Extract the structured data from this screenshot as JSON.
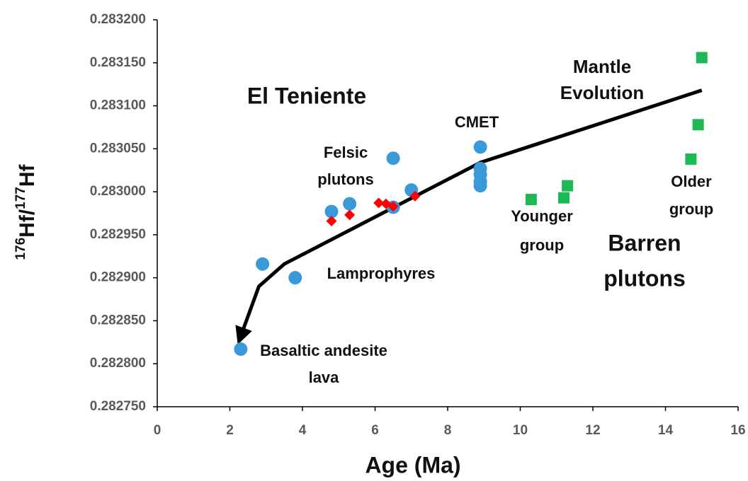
{
  "chart_data": {
    "type": "scatter",
    "x_label": "Age (Ma)",
    "y_label": [
      "176",
      "Hf/",
      "177",
      "Hf"
    ],
    "xlim": [
      0,
      16
    ],
    "xticks": [
      0,
      2,
      4,
      6,
      8,
      10,
      12,
      14,
      16
    ],
    "ylim": [
      0.28275,
      0.2832
    ],
    "yticks": [
      {
        "value": 0.28275,
        "label": "0.282750"
      },
      {
        "value": 0.2828,
        "label": "0.282800"
      },
      {
        "value": 0.28285,
        "label": "0.282850"
      },
      {
        "value": 0.2829,
        "label": "0.282900"
      },
      {
        "value": 0.28295,
        "label": "0.282950"
      },
      {
        "value": 0.283,
        "label": "0.283000"
      },
      {
        "value": 0.28305,
        "label": "0.283050"
      },
      {
        "value": 0.2831,
        "label": "0.283100"
      },
      {
        "value": 0.28315,
        "label": "0.283150"
      },
      {
        "value": 0.2832,
        "label": "0.283200"
      }
    ],
    "grid": false,
    "series": [
      {
        "type": "line",
        "color": "#000000",
        "x": [
          2.3,
          2.8,
          3.5,
          8.9,
          15.0
        ],
        "values": [
          0.282832,
          0.28289,
          0.282916,
          0.283034,
          0.283118
        ]
      },
      {
        "type": "scatter",
        "marker": "circle",
        "color": "#3a9ad9",
        "x": [
          2.3,
          2.9,
          3.8,
          4.8,
          5.3,
          6.5,
          6.5,
          7.0,
          8.9,
          8.9,
          8.9,
          8.9,
          8.9
        ],
        "values": [
          0.282817,
          0.282916,
          0.2829,
          0.282977,
          0.282986,
          0.283039,
          0.282982,
          0.283002,
          0.283052,
          0.283027,
          0.28302,
          0.283012,
          0.283007
        ]
      },
      {
        "type": "scatter",
        "marker": "diamond",
        "color": "#ff0000",
        "x": [
          4.8,
          5.3,
          6.1,
          6.3,
          6.5,
          7.1
        ],
        "values": [
          0.282966,
          0.282973,
          0.282987,
          0.282986,
          0.282983,
          0.282995
        ]
      },
      {
        "type": "scatter",
        "marker": "square",
        "color": "#1db954",
        "x": [
          10.3,
          11.2,
          11.3,
          14.7,
          14.9,
          15.0
        ],
        "values": [
          0.282991,
          0.282993,
          0.283007,
          0.283038,
          0.283078,
          0.283156
        ]
      }
    ],
    "annotations": [
      [
        "El Teniente"
      ],
      [
        "Mantle",
        "Evolution"
      ],
      [
        "CMET"
      ],
      [
        "Felsic",
        "plutons"
      ],
      [
        "Lamprophyres"
      ],
      [
        "Basaltic andesite",
        "lava"
      ],
      [
        "Younger",
        "group"
      ],
      [
        "Older",
        "group"
      ],
      [
        "Barren",
        "plutons"
      ]
    ]
  }
}
